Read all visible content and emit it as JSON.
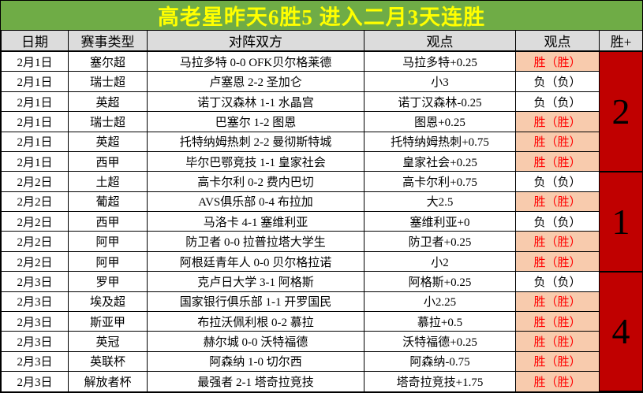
{
  "title": {
    "text": "高老星昨天6胜5  进入二月3天连胜"
  },
  "colors": {
    "title-bg": "#6FAC46",
    "title-fg": "#FFFF00",
    "header-bg": "#DCDCDC",
    "win-bg": "#F8CBAD",
    "win-fg": "#FF0000",
    "group-bg": "#C00000"
  },
  "table": {
    "headers": [
      "日期",
      "赛事类型",
      "对阵双方",
      "观点",
      "观点",
      "胜+"
    ],
    "rows": [
      {
        "date": "2月1日",
        "league": "塞尔超",
        "match": "马拉多特 0-0 OFK贝尔格莱德",
        "pick": "马拉多特+0.25",
        "result": "胜（胜）",
        "win": true
      },
      {
        "date": "2月1日",
        "league": "瑞士超",
        "match": "卢塞恩 2-2 圣加仑",
        "pick": "小3",
        "result": "负（负）",
        "win": false
      },
      {
        "date": "2月1日",
        "league": "英超",
        "match": "诺丁汉森林 1-1 水晶宫",
        "pick": "诺丁汉森林-0.25",
        "result": "负（负）",
        "win": false
      },
      {
        "date": "2月1日",
        "league": "瑞士超",
        "match": "巴塞尔 1-2 图恩",
        "pick": "图恩+0.25",
        "result": "胜（胜）",
        "win": true
      },
      {
        "date": "2月1日",
        "league": "英超",
        "match": "托特纳姆热刺 2-2 曼彻斯特城",
        "pick": "托特纳姆热刺+0.75",
        "result": "胜（胜）",
        "win": true
      },
      {
        "date": "2月1日",
        "league": "西甲",
        "match": "毕尔巴鄂竞技 1-1 皇家社会",
        "pick": "皇家社会+0.25",
        "result": "胜（胜）",
        "win": true
      },
      {
        "date": "2月2日",
        "league": "土超",
        "match": "高卡尔利 0-2 费内巴切",
        "pick": "高卡尔利+0.75",
        "result": "负（负）",
        "win": false
      },
      {
        "date": "2月2日",
        "league": "葡超",
        "match": "AVS俱乐部 0-4 布拉加",
        "pick": "大2.5",
        "result": "胜（胜）",
        "win": true
      },
      {
        "date": "2月2日",
        "league": "西甲",
        "match": "马洛卡 4-1 塞维利亚",
        "pick": "塞维利亚+0",
        "result": "负（负）",
        "win": false
      },
      {
        "date": "2月2日",
        "league": "阿甲",
        "match": "防卫者 0-0 拉普拉塔大学生",
        "pick": "防卫者+0.25",
        "result": "胜（胜）",
        "win": true
      },
      {
        "date": "2月2日",
        "league": "阿甲",
        "match": "阿根廷青年人 0-0 贝尔格拉诺",
        "pick": "小2",
        "result": "胜（胜）",
        "win": true
      },
      {
        "date": "2月3日",
        "league": "罗甲",
        "match": "克卢日大学 3-1 阿格斯",
        "pick": "阿格斯+0.25",
        "result": "负（负）",
        "win": false
      },
      {
        "date": "2月3日",
        "league": "埃及超",
        "match": "国家银行俱乐部 1-1 开罗国民",
        "pick": "小2.25",
        "result": "胜（胜）",
        "win": true
      },
      {
        "date": "2月3日",
        "league": "斯亚甲",
        "match": "布拉沃佩利根 0-2 慕拉",
        "pick": "慕拉+0.5",
        "result": "胜（胜）",
        "win": true
      },
      {
        "date": "2月3日",
        "league": "英冠",
        "match": "赫尔城 0-0 沃特福德",
        "pick": "沃特福德+0.25",
        "result": "胜（胜）",
        "win": true
      },
      {
        "date": "2月3日",
        "league": "英联杯",
        "match": "阿森纳 1-0 切尔西",
        "pick": "阿森纳-0.75",
        "result": "胜（胜）",
        "win": true
      },
      {
        "date": "2月3日",
        "league": "解放者杯",
        "match": "最强者 2-1 塔奇拉竞技",
        "pick": "塔奇拉竞技+1.75",
        "result": "胜（胜）",
        "win": true
      }
    ],
    "win_groups": [
      {
        "span": 6,
        "value": "2"
      },
      {
        "span": 5,
        "value": "1"
      },
      {
        "span": 6,
        "value": "4"
      }
    ]
  }
}
